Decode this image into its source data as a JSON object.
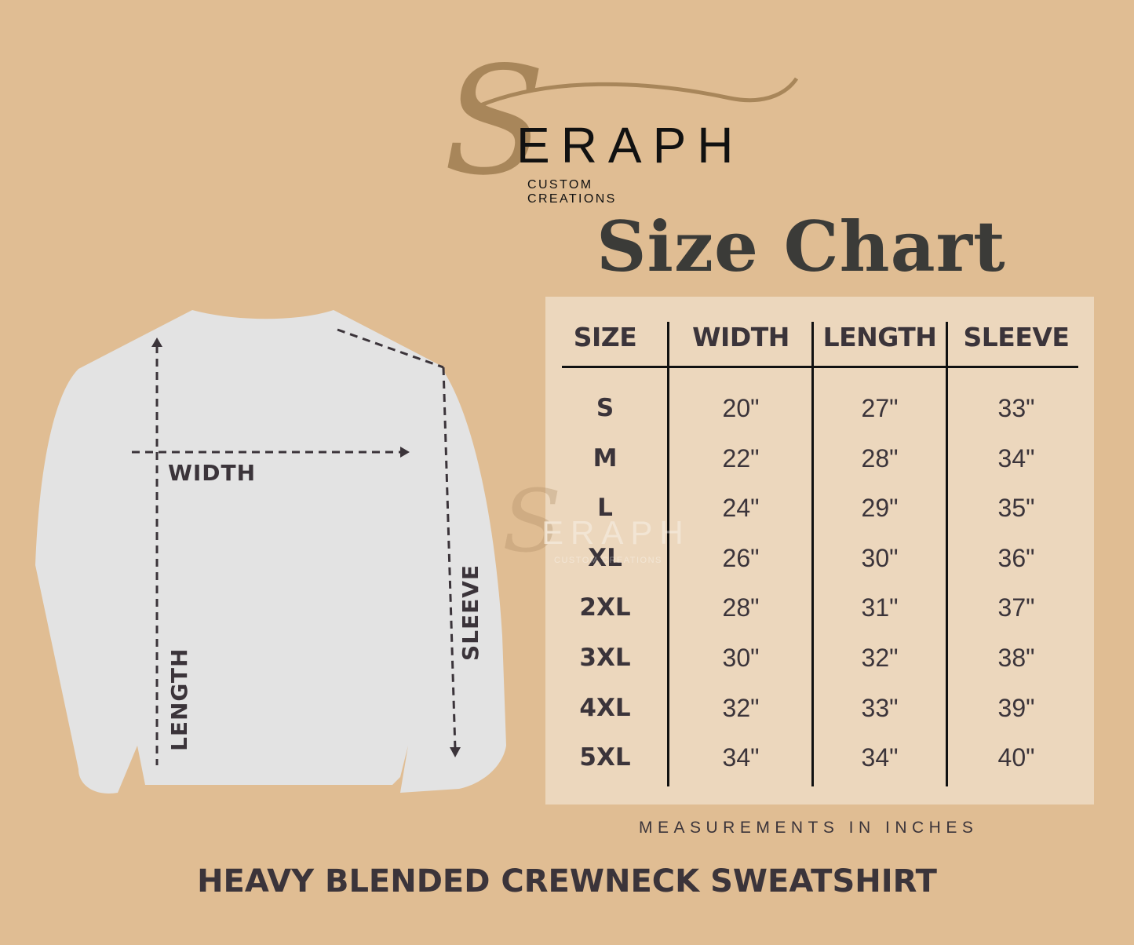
{
  "logo": {
    "initial": "S",
    "word": "ERAPH",
    "subtitle": "CUSTOM CREATIONS"
  },
  "title": "Size Chart",
  "diagram": {
    "width_label": "WIDTH",
    "length_label": "LENGTH",
    "sleeve_label": "SLEEVE"
  },
  "table": {
    "headers": [
      "SIZE",
      "WIDTH",
      "LENGTH",
      "SLEEVE"
    ],
    "rows": [
      [
        "S",
        "20\"",
        "27\"",
        "33\""
      ],
      [
        "M",
        "22\"",
        "28\"",
        "34\""
      ],
      [
        "L",
        "24\"",
        "29\"",
        "35\""
      ],
      [
        "XL",
        "26\"",
        "30\"",
        "36\""
      ],
      [
        "2XL",
        "28\"",
        "31\"",
        "37\""
      ],
      [
        "3XL",
        "30\"",
        "32\"",
        "38\""
      ],
      [
        "4XL",
        "32\"",
        "33\"",
        "39\""
      ],
      [
        "5XL",
        "34\"",
        "34\"",
        "40\""
      ]
    ]
  },
  "note": "MEASUREMENTS IN INCHES",
  "product": "HEAVY BLENDED CREWNECK SWEATSHIRT",
  "colors": {
    "background": "#e0bd93",
    "panel": "#ecd7bd",
    "text": "#3b343a",
    "gold": "#a8865a",
    "shirt": "#e3e3e3"
  }
}
